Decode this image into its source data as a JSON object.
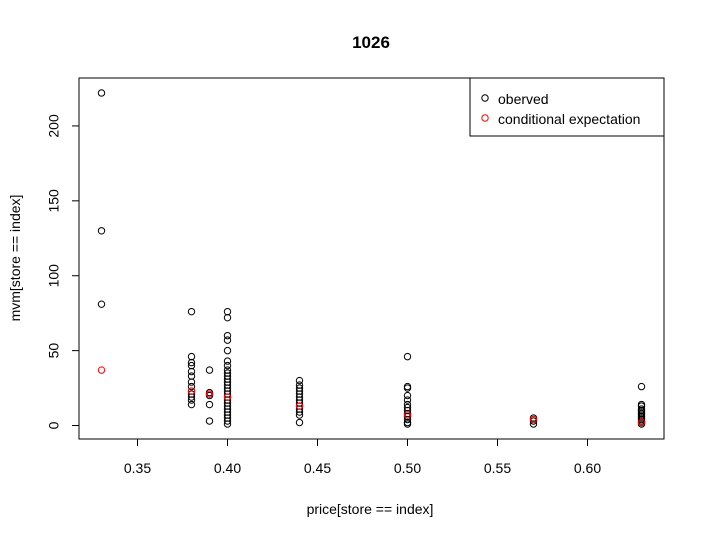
{
  "chart_data": {
    "type": "scatter",
    "title": "1026",
    "xlabel": "price[store == index]",
    "ylabel": "mvm[store == index]",
    "xlim": [
      0.3175,
      0.6425
    ],
    "ylim": [
      -9,
      232
    ],
    "x_ticks": [
      0.35,
      0.4,
      0.45,
      0.5,
      0.55,
      0.6
    ],
    "x_tick_labels": [
      "0.35",
      "0.40",
      "0.45",
      "0.50",
      "0.55",
      "0.60"
    ],
    "y_ticks": [
      0,
      50,
      100,
      150,
      200
    ],
    "y_tick_labels": [
      "0",
      "50",
      "100",
      "150",
      "200"
    ],
    "grid": false,
    "legend_position": "top-right",
    "series": [
      {
        "name": "oberved",
        "color": "#000000",
        "marker": "open-circle",
        "points": [
          [
            0.33,
            222
          ],
          [
            0.33,
            130
          ],
          [
            0.33,
            81
          ],
          [
            0.38,
            76
          ],
          [
            0.38,
            46
          ],
          [
            0.38,
            42
          ],
          [
            0.38,
            40
          ],
          [
            0.38,
            36
          ],
          [
            0.38,
            33
          ],
          [
            0.38,
            29
          ],
          [
            0.38,
            26
          ],
          [
            0.38,
            23
          ],
          [
            0.38,
            21
          ],
          [
            0.38,
            19
          ],
          [
            0.38,
            17
          ],
          [
            0.38,
            14
          ],
          [
            0.39,
            37
          ],
          [
            0.39,
            22
          ],
          [
            0.39,
            21
          ],
          [
            0.39,
            20
          ],
          [
            0.39,
            14
          ],
          [
            0.39,
            3
          ],
          [
            0.4,
            76
          ],
          [
            0.4,
            72
          ],
          [
            0.4,
            60
          ],
          [
            0.4,
            57
          ],
          [
            0.4,
            50
          ],
          [
            0.4,
            43
          ],
          [
            0.4,
            40
          ],
          [
            0.4,
            37
          ],
          [
            0.4,
            35
          ],
          [
            0.4,
            33
          ],
          [
            0.4,
            31
          ],
          [
            0.4,
            29
          ],
          [
            0.4,
            27
          ],
          [
            0.4,
            25
          ],
          [
            0.4,
            23
          ],
          [
            0.4,
            21
          ],
          [
            0.4,
            19
          ],
          [
            0.4,
            17
          ],
          [
            0.4,
            15
          ],
          [
            0.4,
            13
          ],
          [
            0.4,
            11
          ],
          [
            0.4,
            9
          ],
          [
            0.4,
            7
          ],
          [
            0.4,
            5
          ],
          [
            0.4,
            3
          ],
          [
            0.4,
            1
          ],
          [
            0.44,
            30
          ],
          [
            0.44,
            27
          ],
          [
            0.44,
            25
          ],
          [
            0.44,
            23
          ],
          [
            0.44,
            21
          ],
          [
            0.44,
            19
          ],
          [
            0.44,
            17
          ],
          [
            0.44,
            15
          ],
          [
            0.44,
            13
          ],
          [
            0.44,
            11
          ],
          [
            0.44,
            9
          ],
          [
            0.44,
            7
          ],
          [
            0.44,
            2
          ],
          [
            0.5,
            46
          ],
          [
            0.5,
            26
          ],
          [
            0.5,
            25
          ],
          [
            0.5,
            20
          ],
          [
            0.5,
            17
          ],
          [
            0.5,
            14
          ],
          [
            0.5,
            12
          ],
          [
            0.5,
            10
          ],
          [
            0.5,
            8
          ],
          [
            0.5,
            6
          ],
          [
            0.5,
            4
          ],
          [
            0.5,
            2
          ],
          [
            0.5,
            1
          ],
          [
            0.57,
            5
          ],
          [
            0.57,
            3
          ],
          [
            0.57,
            1
          ],
          [
            0.63,
            26
          ],
          [
            0.63,
            14
          ],
          [
            0.63,
            13
          ],
          [
            0.63,
            11
          ],
          [
            0.63,
            10
          ],
          [
            0.63,
            9
          ],
          [
            0.63,
            8
          ],
          [
            0.63,
            7
          ],
          [
            0.63,
            6
          ],
          [
            0.63,
            5
          ],
          [
            0.63,
            4
          ],
          [
            0.63,
            3
          ],
          [
            0.63,
            2
          ],
          [
            0.63,
            1
          ]
        ]
      },
      {
        "name": "conditional expectation",
        "color": "#ff0000",
        "marker": "open-circle",
        "points": [
          [
            0.33,
            37
          ],
          [
            0.38,
            23
          ],
          [
            0.39,
            21
          ],
          [
            0.4,
            19
          ],
          [
            0.44,
            13
          ],
          [
            0.5,
            7
          ],
          [
            0.57,
            4
          ],
          [
            0.63,
            2
          ]
        ]
      }
    ]
  }
}
